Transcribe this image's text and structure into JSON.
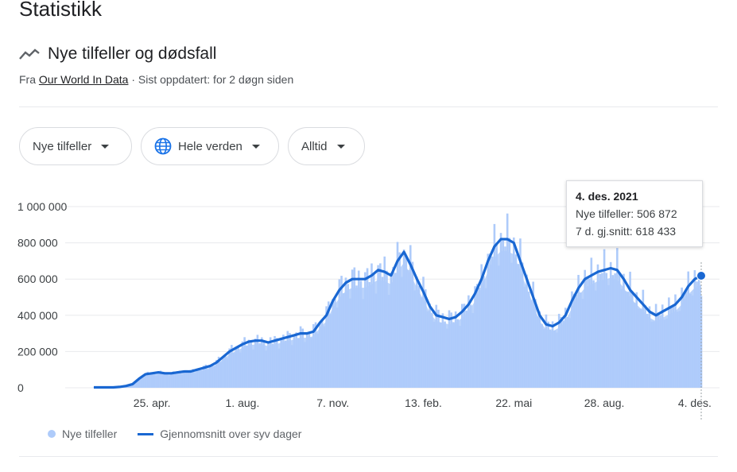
{
  "page": {
    "title": "Statistikk"
  },
  "section": {
    "title": "Nye tilfeller og dødsfall",
    "source_prefix": "Fra ",
    "source_link": "Our World In Data",
    "updated": " · Sist oppdatert: for 2 døgn siden"
  },
  "filters": {
    "metric": "Nye tilfeller",
    "region": "Hele verden",
    "period": "Alltid"
  },
  "tooltip": {
    "date": "4. des. 2021",
    "cases": "Nye tilfeller: 506 872",
    "avg": "7 d. gj.snitt: 618 433"
  },
  "legend": {
    "bars": "Nye tilfeller",
    "line": "Gjennomsnitt over syv dager"
  },
  "colors": {
    "bars": "#aecbfa",
    "line": "#1967d2",
    "grid": "#e8eaed",
    "text": "#3c4043"
  },
  "chart_data": {
    "type": "bar",
    "ylim": [
      0,
      1000000
    ],
    "y_ticks": [
      {
        "value": 0,
        "label": "0"
      },
      {
        "value": 200000,
        "label": "200 000"
      },
      {
        "value": 400000,
        "label": "400 000"
      },
      {
        "value": 600000,
        "label": "600 000"
      },
      {
        "value": 800000,
        "label": "800 000"
      },
      {
        "value": 1000000,
        "label": "1 000 000"
      }
    ],
    "x_ticks": [
      {
        "week": 9,
        "label": "25. apr."
      },
      {
        "week": 23,
        "label": "1. aug."
      },
      {
        "week": 37,
        "label": "7. nov."
      },
      {
        "week": 51,
        "label": "13. feb."
      },
      {
        "week": 65,
        "label": "22. mai"
      },
      {
        "week": 79,
        "label": "28. aug."
      },
      {
        "week": 93,
        "label": "4. des."
      }
    ],
    "series": [
      {
        "name": "Gjennomsnitt over syv dager",
        "values": [
          2000,
          2000,
          2000,
          2000,
          5000,
          10000,
          20000,
          50000,
          75000,
          80000,
          85000,
          80000,
          80000,
          85000,
          90000,
          90000,
          100000,
          110000,
          120000,
          140000,
          170000,
          200000,
          220000,
          240000,
          255000,
          260000,
          260000,
          250000,
          260000,
          270000,
          280000,
          290000,
          300000,
          300000,
          310000,
          360000,
          400000,
          480000,
          540000,
          580000,
          600000,
          600000,
          600000,
          620000,
          650000,
          640000,
          620000,
          700000,
          750000,
          680000,
          600000,
          530000,
          450000,
          400000,
          390000,
          380000,
          390000,
          420000,
          460000,
          520000,
          600000,
          700000,
          780000,
          820000,
          820000,
          800000,
          700000,
          600000,
          500000,
          400000,
          350000,
          340000,
          360000,
          400000,
          480000,
          550000,
          600000,
          620000,
          640000,
          650000,
          660000,
          650000,
          600000,
          540000,
          500000,
          460000,
          420000,
          400000,
          420000,
          440000,
          460000,
          500000,
          560000,
          600000,
          618433
        ]
      },
      {
        "name": "Nye tilfeller",
        "note": "daily values vary around the average; last point 506872",
        "last": 506872
      }
    ]
  }
}
